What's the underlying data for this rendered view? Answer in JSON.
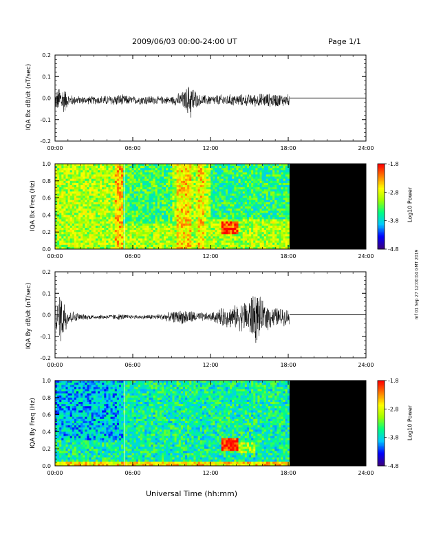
{
  "header": {
    "title": "2009/06/03  00:00-24:00 UT",
    "page": "Page 1/1"
  },
  "footer": {
    "xlabel": "Universal Time (hh:mm)"
  },
  "side_note": "mf 01 Sep 27 12:00:04 GMT 2019",
  "colors": {
    "spectrogram_background": "#000000",
    "trace": "#000000",
    "colormap": [
      "#3a0080",
      "#0000ff",
      "#00c8ff",
      "#00ff80",
      "#a0ff00",
      "#ffff00",
      "#ff8000",
      "#ff0000"
    ]
  },
  "chart_data": [
    {
      "type": "line",
      "ylabel": "IQA Bx dB/dt (nT/sec)",
      "xlim": [
        0,
        24
      ],
      "ylim": [
        -0.2,
        0.2
      ],
      "xticks": [
        "00:00",
        "06:00",
        "12:00",
        "18:00",
        "24:00"
      ],
      "yticks": [
        "0.2",
        "0.1",
        "0.0",
        "-0.1",
        "-0.2"
      ],
      "data_end_hour": 18.1,
      "envelope": {
        "x": [
          0,
          0.5,
          1,
          2,
          3,
          4,
          5,
          6,
          7,
          8,
          9,
          10,
          10.5,
          11,
          12,
          13,
          14,
          15,
          16,
          17,
          18.1
        ],
        "amplitude": [
          0.04,
          0.09,
          0.03,
          0.02,
          0.02,
          0.025,
          0.03,
          0.02,
          0.025,
          0.02,
          0.02,
          0.05,
          0.1,
          0.03,
          0.025,
          0.03,
          0.03,
          0.03,
          0.035,
          0.035,
          0.03
        ]
      },
      "flat_value_after_data": 0.0
    },
    {
      "type": "heatmap",
      "ylabel": "IQA Bx Freq (Hz)",
      "xlim": [
        0,
        24
      ],
      "ylim": [
        0,
        1.0
      ],
      "xticks": [
        "00:00",
        "06:00",
        "12:00",
        "18:00",
        "24:00"
      ],
      "yticks": [
        "1.0",
        "0.8",
        "0.6",
        "0.4",
        "0.2",
        "0.0"
      ],
      "colorbar_label": "Log10 Power",
      "colorbar_ticks": [
        "-1.8",
        "-2.8",
        "-3.8",
        "-4.8"
      ],
      "data_end_hour": 18.1,
      "base_level": -3.0,
      "features": [
        {
          "x0": 4.6,
          "x1": 5.2,
          "y0": 0,
          "y1": 1,
          "level": -2.5
        },
        {
          "x0": 9.4,
          "x1": 10.6,
          "y0": 0,
          "y1": 1,
          "level": -2.6
        },
        {
          "x0": 11.0,
          "x1": 11.6,
          "y0": 0,
          "y1": 1,
          "level": -2.6
        },
        {
          "x0": 12.8,
          "x1": 14.2,
          "y0": 0.18,
          "y1": 0.32,
          "level": -2.0
        },
        {
          "x0": 5.3,
          "x1": 9.0,
          "y0": 0.3,
          "y1": 1,
          "level": -3.4
        },
        {
          "x0": 12.0,
          "x1": 18.1,
          "y0": 0.35,
          "y1": 1,
          "level": -3.5
        }
      ]
    },
    {
      "type": "line",
      "ylabel": "IQA By dB/dt (nT/sec)",
      "xlim": [
        0,
        24
      ],
      "ylim": [
        -0.2,
        0.2
      ],
      "xticks": [
        "00:00",
        "06:00",
        "12:00",
        "18:00",
        "24:00"
      ],
      "yticks": [
        "0.2",
        "0.1",
        "0.0",
        "-0.1",
        "-0.2"
      ],
      "data_end_hour": 18.1,
      "envelope": {
        "x": [
          0,
          0.5,
          1,
          2,
          3,
          4,
          5,
          6,
          7,
          8,
          9,
          10,
          11,
          12,
          13,
          14,
          15,
          15.5,
          16,
          17,
          18.1
        ],
        "amplitude": [
          0.06,
          0.14,
          0.04,
          0.015,
          0.012,
          0.012,
          0.015,
          0.01,
          0.012,
          0.015,
          0.025,
          0.04,
          0.025,
          0.02,
          0.05,
          0.06,
          0.1,
          0.14,
          0.08,
          0.05,
          0.04
        ]
      },
      "flat_value_after_data": 0.0
    },
    {
      "type": "heatmap",
      "ylabel": "IQA By Freq (Hz)",
      "xlim": [
        0,
        24
      ],
      "ylim": [
        0,
        1.0
      ],
      "xticks": [
        "00:00",
        "06:00",
        "12:00",
        "18:00",
        "24:00"
      ],
      "yticks": [
        "1.0",
        "0.8",
        "0.6",
        "0.4",
        "0.2",
        "0.0"
      ],
      "colorbar_label": "Log10 Power",
      "colorbar_ticks": [
        "-1.8",
        "-2.8",
        "-3.8",
        "-4.8"
      ],
      "data_end_hour": 18.1,
      "base_level": -3.6,
      "features": [
        {
          "x0": 0,
          "x1": 18.1,
          "y0": 0,
          "y1": 0.06,
          "level": -2.6
        },
        {
          "x0": 12.8,
          "x1": 14.2,
          "y0": 0.18,
          "y1": 0.32,
          "level": -1.9
        },
        {
          "x0": 14.2,
          "x1": 15.5,
          "y0": 0.15,
          "y1": 0.28,
          "level": -3.0
        },
        {
          "x0": 0,
          "x1": 5.2,
          "y0": 0.3,
          "y1": 1,
          "level": -3.9
        }
      ]
    }
  ]
}
